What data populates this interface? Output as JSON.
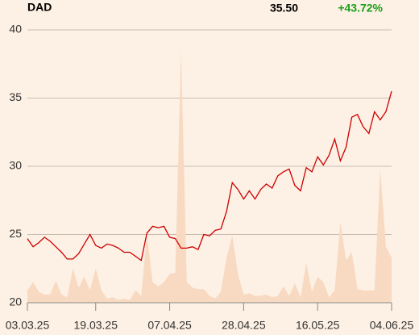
{
  "chart_data": {
    "type": "line",
    "title": "DAD",
    "price_label": "35.50",
    "change_label": "+43.72%",
    "change_color": "#1aa01a",
    "categories": [
      "03.03.25",
      null,
      null,
      null,
      null,
      null,
      null,
      null,
      null,
      null,
      null,
      null,
      "19.03.25",
      null,
      null,
      null,
      null,
      null,
      null,
      null,
      null,
      null,
      null,
      null,
      null,
      "07.04.25",
      null,
      null,
      null,
      null,
      null,
      null,
      null,
      null,
      null,
      null,
      null,
      null,
      "28.04.25",
      null,
      null,
      null,
      null,
      null,
      null,
      null,
      null,
      null,
      null,
      null,
      null,
      "16.05.25",
      null,
      null,
      null,
      null,
      null,
      null,
      null,
      null,
      null,
      null,
      null,
      null,
      "04.06.25"
    ],
    "series": [
      {
        "color": "#f8d9c1",
        "kind": "area",
        "values": [
          20.9,
          21.5,
          20.8,
          20.6,
          20.6,
          21.6,
          20.6,
          20.4,
          22.5,
          21.1,
          21.9,
          20.9,
          22.5,
          20.9,
          20.3,
          20.4,
          20.2,
          20.3,
          20.2,
          20.9,
          20.5,
          25.0,
          21.5,
          21.2,
          21.5,
          22.1,
          22.2,
          38.5,
          21.5,
          21.1,
          21.0,
          21.0,
          20.5,
          20.3,
          20.8,
          23.3,
          24.9,
          22.1,
          20.6,
          20.7,
          20.5,
          20.5,
          20.6,
          20.4,
          20.5,
          21.2,
          20.5,
          21.4,
          20.4,
          22.9,
          20.8,
          21.9,
          21.5,
          20.4,
          20.9,
          25.9,
          23.1,
          23.7,
          21.0,
          20.9,
          20.9,
          20.9,
          29.8,
          24.1,
          23.3
        ]
      },
      {
        "color": "#cc0000",
        "kind": "line",
        "values": [
          24.7,
          24.1,
          24.4,
          24.8,
          24.5,
          24.1,
          23.7,
          23.2,
          23.2,
          23.6,
          24.3,
          25.0,
          24.2,
          24.0,
          24.3,
          24.2,
          24.0,
          23.7,
          23.7,
          23.4,
          23.1,
          25.1,
          25.6,
          25.5,
          25.6,
          24.8,
          24.7,
          24.0,
          24.0,
          24.1,
          23.9,
          25.0,
          24.9,
          25.3,
          25.4,
          26.7,
          28.8,
          28.3,
          27.6,
          28.2,
          27.6,
          28.3,
          28.7,
          28.4,
          29.3,
          29.6,
          29.8,
          28.6,
          28.2,
          29.9,
          29.6,
          30.7,
          30.1,
          30.8,
          32.0,
          30.4,
          31.4,
          33.6,
          33.8,
          32.9,
          32.4,
          34.0,
          33.4,
          34.0,
          35.5
        ]
      }
    ],
    "ylim": [
      20,
      40
    ],
    "yticks": [
      20,
      25,
      30,
      35,
      40
    ],
    "grid": true
  }
}
